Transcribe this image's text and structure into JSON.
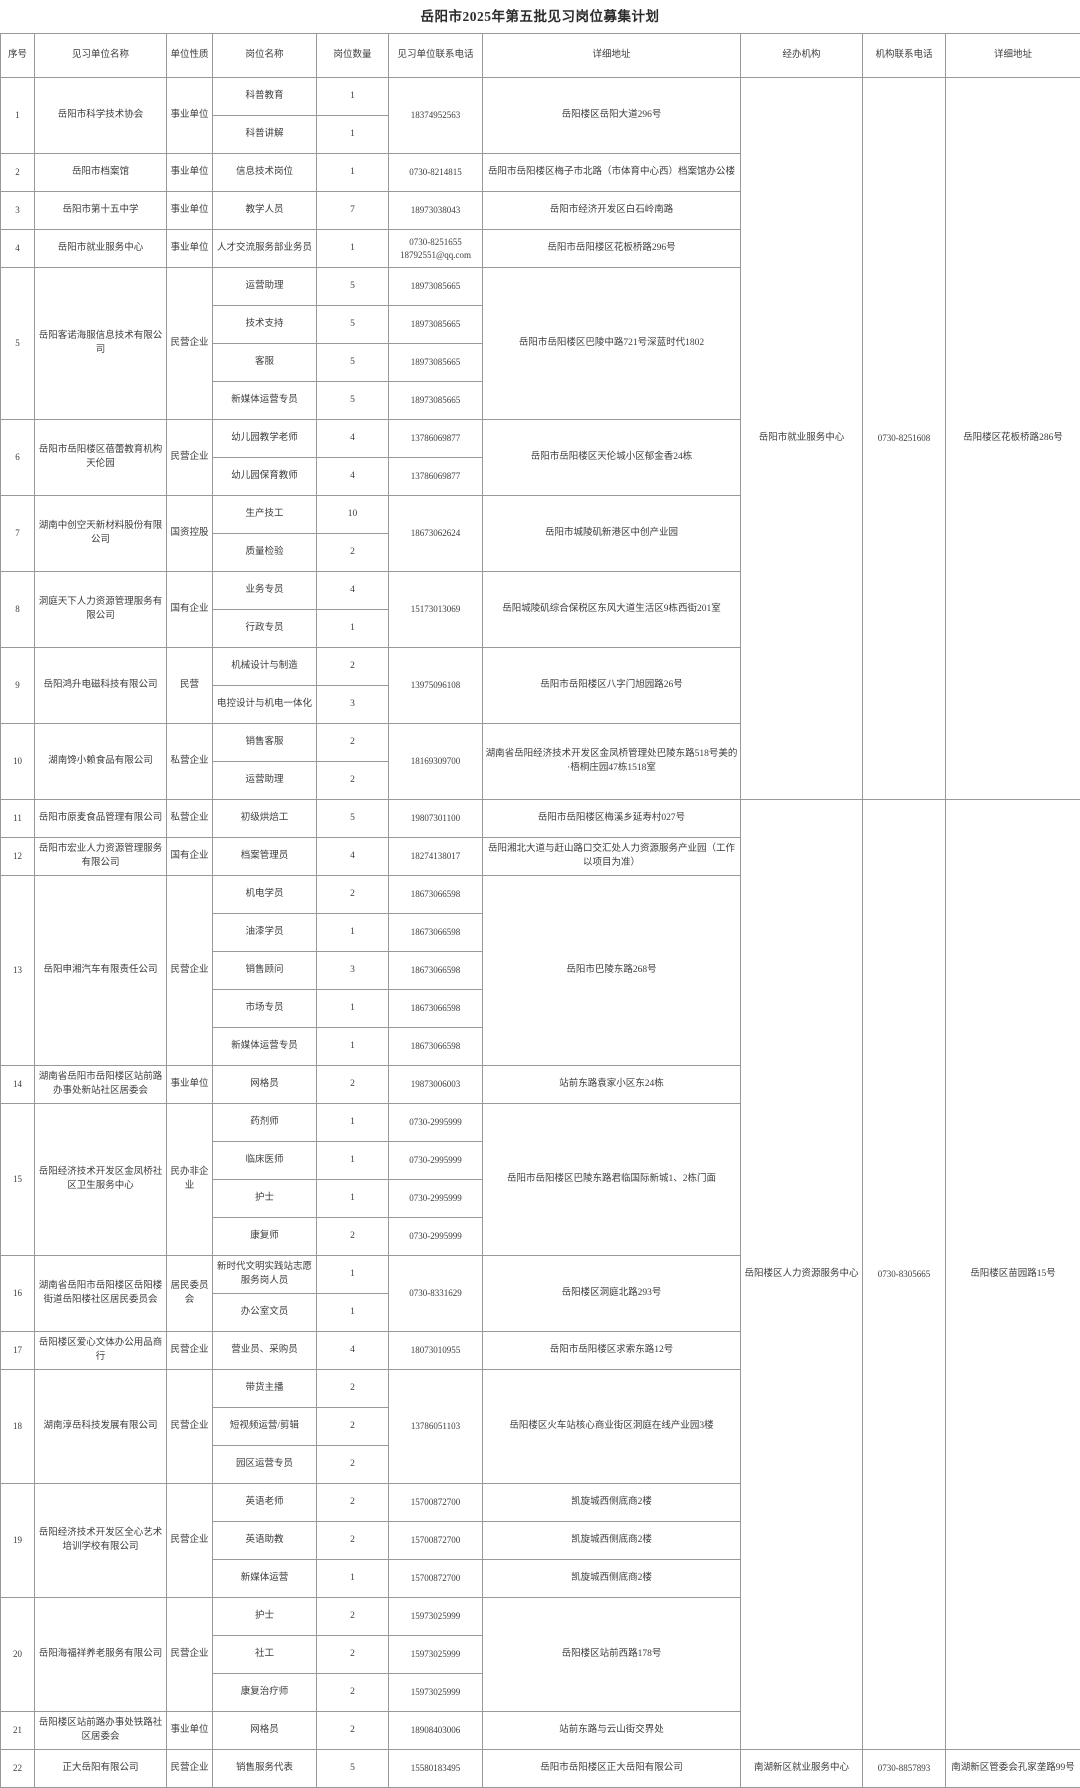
{
  "title": "岳阳市2025年第五批见习岗位募集计划",
  "columns": [
    "序号",
    "见习单位名称",
    "单位性质",
    "岗位名称",
    "岗位数量",
    "见习单位联系电话",
    "详细地址",
    "经办机构",
    "机构联系电话",
    "详细地址"
  ],
  "agencies": [
    {
      "name": "岳阳市就业服务中心",
      "phone": "0730-8251608",
      "address": "岳阳楼区花板桥路286号",
      "company_span": [
        1,
        10
      ]
    },
    {
      "name": "岳阳楼区人力资源服务中心",
      "phone": "0730-8305665",
      "address": "岳阳楼区苗园路15号",
      "company_span": [
        11,
        21
      ]
    },
    {
      "name": "南湖新区就业服务中心",
      "phone": "0730-8857893",
      "address": "南湖新区管委会孔家垄路99号",
      "company_span": [
        22,
        22
      ]
    }
  ],
  "companies": [
    {
      "seq": 1,
      "name": "岳阳市科学技术协会",
      "nature": "事业单位",
      "phone_merged": true,
      "phone": "18374952563",
      "address": "岳阳楼区岳阳大道296号",
      "positions": [
        {
          "name": "科普教育",
          "count": 1
        },
        {
          "name": "科普讲解",
          "count": 1
        }
      ]
    },
    {
      "seq": 2,
      "name": "岳阳市档案馆",
      "nature": "事业单位",
      "phone_merged": true,
      "phone": "0730-8214815",
      "address": "岳阳市岳阳楼区梅子市北路（市体育中心西）档案馆办公楼",
      "positions": [
        {
          "name": "信息技术岗位",
          "count": 1
        }
      ]
    },
    {
      "seq": 3,
      "name": "岳阳市第十五中学",
      "nature": "事业单位",
      "phone_merged": true,
      "phone": "18973038043",
      "address": "岳阳市经济开发区白石岭南路",
      "positions": [
        {
          "name": "教学人员",
          "count": 7
        }
      ]
    },
    {
      "seq": 4,
      "name": "岳阳市就业服务中心",
      "nature": "事业单位",
      "phone_merged": true,
      "phone": "0730-8251655\n18792551@qq.com",
      "address": "岳阳市岳阳楼区花板桥路296号",
      "positions": [
        {
          "name": "人才交流服务部业务员",
          "count": 1
        }
      ]
    },
    {
      "seq": 5,
      "name": "岳阳客诺海服信息技术有限公司",
      "nature": "民营企业",
      "phone_merged": false,
      "address": "岳阳市岳阳楼区巴陵中路721号深蓝时代1802",
      "positions": [
        {
          "name": "运营助理",
          "count": 5,
          "phone": "18973085665"
        },
        {
          "name": "技术支持",
          "count": 5,
          "phone": "18973085665"
        },
        {
          "name": "客服",
          "count": 5,
          "phone": "18973085665"
        },
        {
          "name": "新媒体运营专员",
          "count": 5,
          "phone": "18973085665"
        }
      ]
    },
    {
      "seq": 6,
      "name": "岳阳市岳阳楼区蓓蕾教育机构天伦园",
      "nature": "民营企业",
      "phone_merged": false,
      "address": "岳阳市岳阳楼区天伦城小区郁金香24栋",
      "positions": [
        {
          "name": "幼儿园教学老师",
          "count": 4,
          "phone": "13786069877"
        },
        {
          "name": "幼儿园保育教师",
          "count": 4,
          "phone": "13786069877"
        }
      ]
    },
    {
      "seq": 7,
      "name": "湖南中创空天新材料股份有限公司",
      "nature": "国资控股",
      "phone_merged": true,
      "phone": "18673062624",
      "address": "岳阳市城陵矶新港区中创产业园",
      "positions": [
        {
          "name": "生产技工",
          "count": 10
        },
        {
          "name": "质量检验",
          "count": 2
        }
      ]
    },
    {
      "seq": 8,
      "name": "洞庭天下人力资源管理服务有限公司",
      "nature": "国有企业",
      "phone_merged": true,
      "phone": "15173013069",
      "address": "岳阳城陵矶综合保税区东风大道生活区9栋西街201室",
      "positions": [
        {
          "name": "业务专员",
          "count": 4
        },
        {
          "name": "行政专员",
          "count": 1
        }
      ]
    },
    {
      "seq": 9,
      "name": "岳阳鸿升电磁科技有限公司",
      "nature": "民营",
      "phone_merged": true,
      "phone": "13975096108",
      "address": "岳阳市岳阳楼区八字门旭园路26号",
      "positions": [
        {
          "name": "机械设计与制造",
          "count": 2
        },
        {
          "name": "电控设计与机电一体化",
          "count": 3
        }
      ]
    },
    {
      "seq": 10,
      "name": "湖南馋小赖食品有限公司",
      "nature": "私营企业",
      "phone_merged": true,
      "phone": "18169309700",
      "address": "湖南省岳阳经济技术开发区金凤桥管理处巴陵东路518号美的·梧桐庄园47栋1518室",
      "positions": [
        {
          "name": "销售客服",
          "count": 2
        },
        {
          "name": "运营助理",
          "count": 2
        }
      ]
    },
    {
      "seq": 11,
      "name": "岳阳市原麦食品管理有限公司",
      "nature": "私营企业",
      "phone_merged": true,
      "phone": "19807301100",
      "address": "岳阳市岳阳楼区梅溪乡延寿村027号",
      "positions": [
        {
          "name": "初级烘焙工",
          "count": 5
        }
      ]
    },
    {
      "seq": 12,
      "name": "岳阳市宏业人力资源管理服务有限公司",
      "nature": "国有企业",
      "phone_merged": true,
      "phone": "18274138017",
      "address": "岳阳湘北大道与赶山路口交汇处人力资源服务产业园（工作以项目为准）",
      "positions": [
        {
          "name": "档案管理员",
          "count": 4
        }
      ]
    },
    {
      "seq": 13,
      "name": "岳阳申湘汽车有限责任公司",
      "nature": "民营企业",
      "phone_merged": false,
      "address": "岳阳市巴陵东路268号",
      "positions": [
        {
          "name": "机电学员",
          "count": 2,
          "phone": "18673066598"
        },
        {
          "name": "油漆学员",
          "count": 1,
          "phone": "18673066598"
        },
        {
          "name": "销售顾问",
          "count": 3,
          "phone": "18673066598"
        },
        {
          "name": "市场专员",
          "count": 1,
          "phone": "18673066598"
        },
        {
          "name": "新媒体运营专员",
          "count": 1,
          "phone": "18673066598"
        }
      ]
    },
    {
      "seq": 14,
      "name": "湖南省岳阳市岳阳楼区站前路办事处新站社区居委会",
      "nature": "事业单位",
      "phone_merged": true,
      "phone": "19873006003",
      "address": "站前东路袁家小区东24栋",
      "positions": [
        {
          "name": "网格员",
          "count": 2
        }
      ]
    },
    {
      "seq": 15,
      "name": "岳阳经济技术开发区金凤桥社区卫生服务中心",
      "nature": "民办非企业",
      "phone_merged": false,
      "address": "岳阳市岳阳楼区巴陵东路君临国际新城1、2栋门面",
      "positions": [
        {
          "name": "药剂师",
          "count": 1,
          "phone": "0730-2995999"
        },
        {
          "name": "临床医师",
          "count": 1,
          "phone": "0730-2995999"
        },
        {
          "name": "护士",
          "count": 1,
          "phone": "0730-2995999"
        },
        {
          "name": "康复师",
          "count": 2,
          "phone": "0730-2995999"
        }
      ]
    },
    {
      "seq": 16,
      "name": "湖南省岳阳市岳阳楼区岳阳楼街道岳阳楼社区居民委员会",
      "nature": "居民委员会",
      "phone_merged": true,
      "phone": "0730-8331629",
      "address": "岳阳楼区洞庭北路293号",
      "positions": [
        {
          "name": "新时代文明实践站志愿服务岗人员",
          "count": 1
        },
        {
          "name": "办公室文员",
          "count": 1
        }
      ]
    },
    {
      "seq": 17,
      "name": "岳阳楼区爱心文体办公用品商行",
      "nature": "民营企业",
      "phone_merged": true,
      "phone": "18073010955",
      "address": "岳阳市岳阳楼区求索东路12号",
      "positions": [
        {
          "name": "营业员、采购员",
          "count": 4
        }
      ]
    },
    {
      "seq": 18,
      "name": "湖南淳岳科技发展有限公司",
      "nature": "民营企业",
      "phone_merged": true,
      "phone": "13786051103",
      "address": "岳阳楼区火车站核心商业街区洞庭在线产业园3楼",
      "positions": [
        {
          "name": "带货主播",
          "count": 2
        },
        {
          "name": "短视频运营/剪辑",
          "count": 2
        },
        {
          "name": "园区运营专员",
          "count": 2
        }
      ]
    },
    {
      "seq": 19,
      "name": "岳阳经济技术开发区全心艺术培训学校有限公司",
      "nature": "民营企业",
      "phone_merged": false,
      "address_per_position": true,
      "positions": [
        {
          "name": "英语老师",
          "count": 2,
          "phone": "15700872700",
          "address": "凯旋城西侧底商2楼"
        },
        {
          "name": "英语助教",
          "count": 2,
          "phone": "15700872700",
          "address": "凯旋城西侧底商2楼"
        },
        {
          "name": "新媒体运营",
          "count": 1,
          "phone": "15700872700",
          "address": "凯旋城西侧底商2楼"
        }
      ]
    },
    {
      "seq": 20,
      "name": "岳阳海福祥养老服务有限公司",
      "nature": "民营企业",
      "phone_merged": false,
      "address": "岳阳楼区站前西路178号",
      "positions": [
        {
          "name": "护士",
          "count": 2,
          "phone": "15973025999"
        },
        {
          "name": "社工",
          "count": 2,
          "phone": "15973025999"
        },
        {
          "name": "康复治疗师",
          "count": 2,
          "phone": "15973025999"
        }
      ]
    },
    {
      "seq": 21,
      "name": "岳阳楼区站前路办事处铁路社区居委会",
      "nature": "事业单位",
      "phone_merged": true,
      "phone": "18908403006",
      "address": "站前东路与云山街交界处",
      "positions": [
        {
          "name": "网格员",
          "count": 2
        }
      ]
    },
    {
      "seq": 22,
      "name": "正大岳阳有限公司",
      "nature": "民营企业",
      "phone_merged": true,
      "phone": "15580183495",
      "address": "岳阳市岳阳楼区正大岳阳有限公司",
      "positions": [
        {
          "name": "销售服务代表",
          "count": 5
        }
      ]
    }
  ]
}
